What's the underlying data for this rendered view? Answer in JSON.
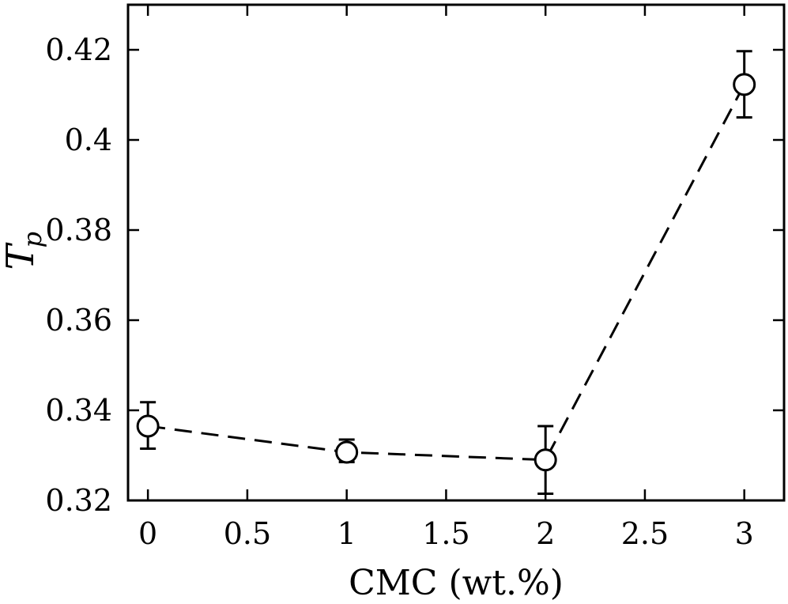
{
  "chart_data": {
    "type": "line",
    "xlabel": "CMC (wt.%)",
    "ylabel": "T",
    "ylabel_subscript": "p",
    "xlim": [
      -0.1,
      3.2
    ],
    "ylim": [
      0.32,
      0.43
    ],
    "x_ticks": [
      0,
      0.5,
      1,
      1.5,
      2,
      2.5,
      3
    ],
    "x_tick_labels": [
      "0",
      "0.5",
      "1",
      "1.5",
      "2",
      "2.5",
      "3"
    ],
    "y_ticks": [
      0.32,
      0.34,
      0.36,
      0.38,
      0.4,
      0.42
    ],
    "y_tick_labels": [
      "0.32",
      "0.34",
      "0.36",
      "0.38",
      "0.4",
      "0.42"
    ],
    "grid": false,
    "line_style": "dashed",
    "marker": "open-circle",
    "color": "#000000",
    "series": [
      {
        "x": [
          0,
          1,
          2,
          3
        ],
        "y": [
          0.3365,
          0.3307,
          0.329,
          0.4123
        ],
        "yerr_low": [
          0.3315,
          0.3285,
          0.3215,
          0.405
        ],
        "yerr_high": [
          0.3418,
          0.3335,
          0.3365,
          0.4197
        ]
      }
    ]
  }
}
